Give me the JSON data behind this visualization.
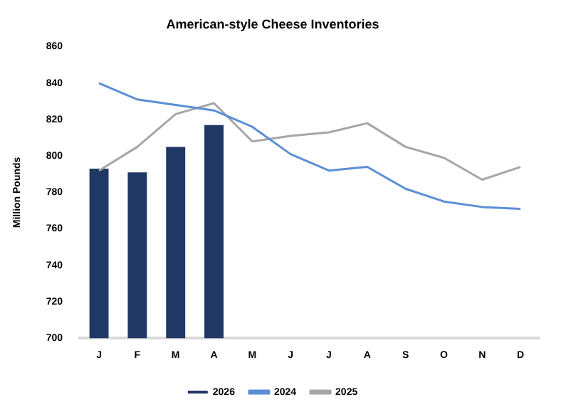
{
  "chart_data": {
    "type": "bar",
    "title": "American-style Cheese Inventories",
    "ylabel": "Million Pounds",
    "categories": [
      "J",
      "F",
      "M",
      "A",
      "M",
      "J",
      "J",
      "A",
      "S",
      "O",
      "N",
      "D"
    ],
    "series": [
      {
        "name": "2026",
        "color": "#203864",
        "values": [
          793,
          791,
          805,
          817,
          null,
          null,
          null,
          null,
          null,
          null,
          null,
          null
        ]
      },
      {
        "name": "2024",
        "type": "line",
        "color": "#5b8fd6",
        "values": [
          840,
          831,
          828,
          825,
          816,
          801,
          792,
          794,
          782,
          775,
          772,
          771
        ]
      },
      {
        "name": "2025",
        "type": "line",
        "color": "#a6a6a6",
        "values": [
          792,
          805,
          823,
          829,
          808,
          811,
          813,
          818,
          805,
          799,
          787,
          794
        ]
      }
    ],
    "ylim": [
      700,
      860
    ],
    "yticks": [
      700,
      720,
      740,
      760,
      780,
      800,
      820,
      840,
      860
    ],
    "grid": false,
    "legend": "bottom",
    "marker": "none"
  }
}
